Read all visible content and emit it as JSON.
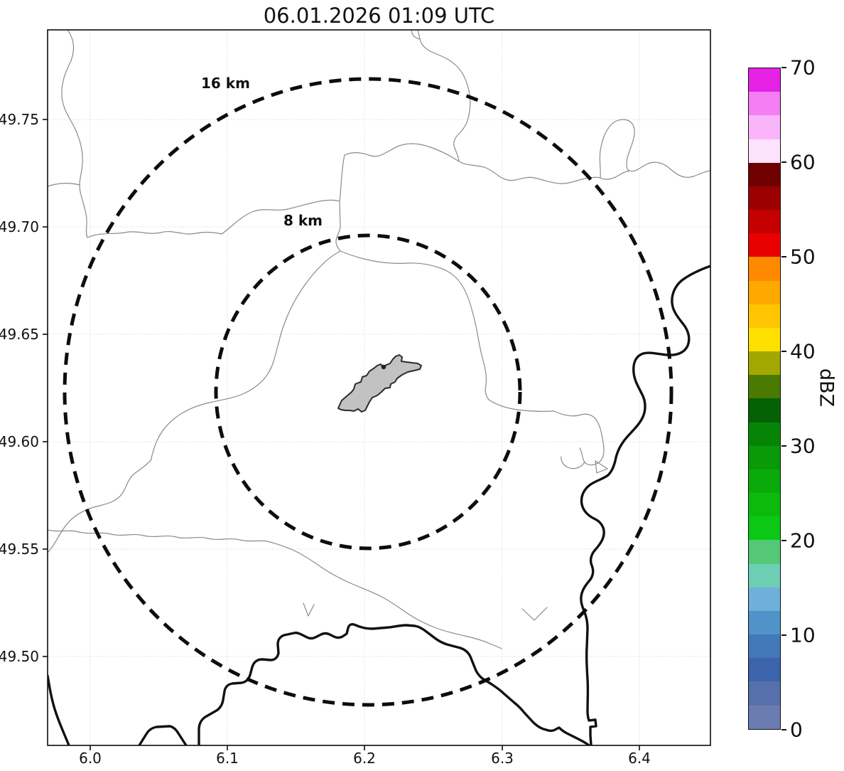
{
  "title": "06.01.2026 01:09 UTC",
  "plot": {
    "x_ticks": [
      "6.0",
      "6.1",
      "6.2",
      "6.3",
      "6.4"
    ],
    "y_ticks": [
      "49.75",
      "49.70",
      "49.65",
      "49.60",
      "49.55",
      "49.50"
    ],
    "range_ring_labels": {
      "outer": "16 km",
      "inner": "8 km"
    },
    "city_polygon_fill": "#c2c2c2",
    "boundary_line_color": "#8a8a8a",
    "border_line_color": "#111111",
    "gridline_color": "#cccccc"
  },
  "colorbar": {
    "label": "dBZ",
    "ticks": [
      "70",
      "60",
      "50",
      "40",
      "30",
      "20",
      "10",
      "0"
    ],
    "segments": [
      {
        "from": 0,
        "to": 2.5,
        "color": "#6B7CB0"
      },
      {
        "from": 2.5,
        "to": 5,
        "color": "#5670AB"
      },
      {
        "from": 5,
        "to": 7.5,
        "color": "#3B64AC"
      },
      {
        "from": 7.5,
        "to": 10,
        "color": "#4379B9"
      },
      {
        "from": 10,
        "to": 12.5,
        "color": "#4F93C8"
      },
      {
        "from": 12.5,
        "to": 15,
        "color": "#6FB0DA"
      },
      {
        "from": 15,
        "to": 17.5,
        "color": "#6CCFB4"
      },
      {
        "from": 17.5,
        "to": 20,
        "color": "#55C878"
      },
      {
        "from": 20,
        "to": 22.5,
        "color": "#0AC814"
      },
      {
        "from": 22.5,
        "to": 25,
        "color": "#0CBA0C"
      },
      {
        "from": 25,
        "to": 27.5,
        "color": "#0BAA0B"
      },
      {
        "from": 27.5,
        "to": 30,
        "color": "#099909"
      },
      {
        "from": 30,
        "to": 32.5,
        "color": "#068406"
      },
      {
        "from": 32.5,
        "to": 35,
        "color": "#046104"
      },
      {
        "from": 35,
        "to": 37.5,
        "color": "#4A7A00"
      },
      {
        "from": 37.5,
        "to": 40,
        "color": "#A3A800"
      },
      {
        "from": 40,
        "to": 42.5,
        "color": "#FFDF00"
      },
      {
        "from": 42.5,
        "to": 45,
        "color": "#FFC500"
      },
      {
        "from": 45,
        "to": 47.5,
        "color": "#FFA800"
      },
      {
        "from": 47.5,
        "to": 50,
        "color": "#FF8A00"
      },
      {
        "from": 50,
        "to": 52.5,
        "color": "#E80000"
      },
      {
        "from": 52.5,
        "to": 55,
        "color": "#C40000"
      },
      {
        "from": 55,
        "to": 57.5,
        "color": "#9C0000"
      },
      {
        "from": 57.5,
        "to": 60,
        "color": "#700000"
      },
      {
        "from": 60,
        "to": 62.5,
        "color": "#FCE3FC"
      },
      {
        "from": 62.5,
        "to": 65,
        "color": "#FAB4FA"
      },
      {
        "from": 65,
        "to": 67.5,
        "color": "#F57EF5"
      },
      {
        "from": 67.5,
        "to": 70,
        "color": "#E522E5"
      }
    ]
  },
  "chart_data": {
    "type": "heatmap",
    "title": "06.01.2026 01:09 UTC",
    "x_axis": {
      "ticks": [
        6.0,
        6.1,
        6.2,
        6.3,
        6.4
      ],
      "range": [
        5.97,
        6.45
      ],
      "unit": "degrees longitude E"
    },
    "y_axis": {
      "ticks": [
        49.75,
        49.7,
        49.65,
        49.6,
        49.55,
        49.5
      ],
      "range": [
        49.46,
        49.79
      ],
      "unit": "degrees latitude N"
    },
    "colorbar": {
      "label": "dBZ",
      "range": [
        0,
        70
      ],
      "tick_step": 10,
      "segment_step": 2.5
    },
    "range_rings_km": [
      8,
      16
    ],
    "reflectivity_echoes": [],
    "grid": true,
    "legend_position": "right-colorbar",
    "notes": "Weather radar reflectivity frame with no precipitation echoes visible; dashed range rings at 8 km and 16 km around the radar site, gray city footprint polygon at center, thin administrative boundary lines and thick country-border/river lines."
  }
}
